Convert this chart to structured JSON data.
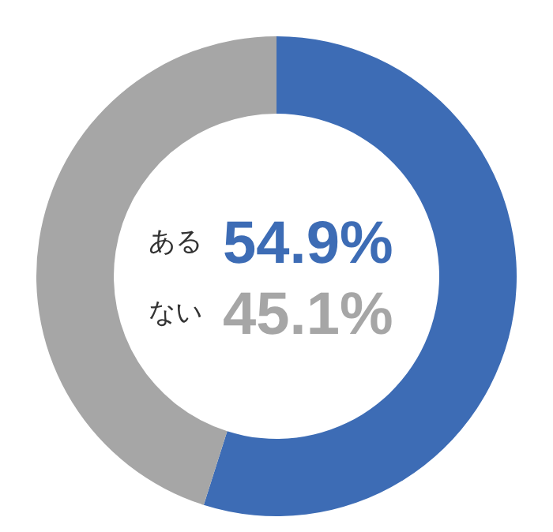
{
  "chart_data": {
    "type": "donut",
    "categories": [
      "ある",
      "ない"
    ],
    "values": [
      54.9,
      45.1
    ],
    "colors": [
      "#3d6cb5",
      "#a6a6a6"
    ],
    "value_labels": [
      "54.9%",
      "45.1%"
    ]
  }
}
